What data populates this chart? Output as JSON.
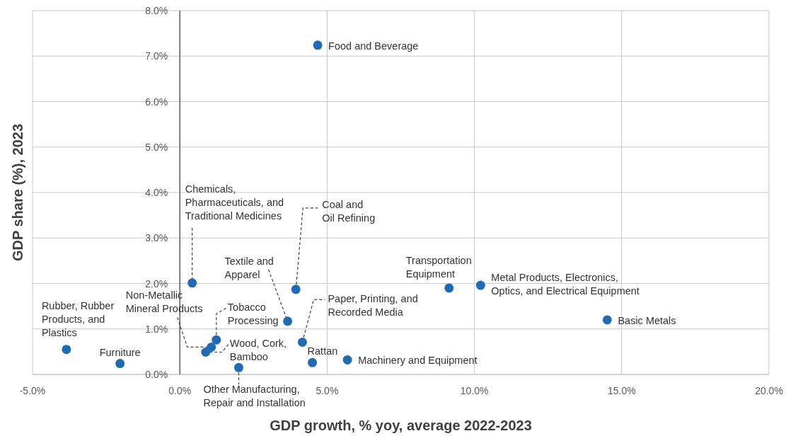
{
  "chart_data": {
    "type": "scatter",
    "xlabel": "GDP growth, % yoy, average 2022-2023",
    "ylabel": "GDP share (%), 2023",
    "x": [
      4.68,
      0.42,
      3.94,
      3.66,
      4.16,
      4.5,
      5.69,
      1.24,
      1.07,
      0.88,
      2.0,
      -3.85,
      -2.03,
      9.14,
      10.21,
      14.51
    ],
    "values": [
      7.24,
      2.01,
      1.87,
      1.17,
      0.71,
      0.26,
      0.32,
      0.76,
      0.6,
      0.49,
      0.15,
      0.55,
      0.24,
      1.9,
      1.96,
      1.2
    ],
    "color": "#1f6cb4",
    "marker": "circle",
    "grid": true,
    "xlim": [
      -5,
      20
    ],
    "xticks": [
      {
        "value": -5,
        "label": "-5.0%"
      },
      {
        "value": 0,
        "label": "0.0%"
      },
      {
        "value": 5,
        "label": "5.0%"
      },
      {
        "value": 10,
        "label": "10.0%"
      },
      {
        "value": 15,
        "label": "15.0%"
      },
      {
        "value": 20,
        "label": "20.0%"
      }
    ],
    "ylim": [
      0,
      8
    ],
    "yticks": [
      {
        "value": 0,
        "label": "0.0%"
      },
      {
        "value": 1,
        "label": "1.0%"
      },
      {
        "value": 2,
        "label": "2.0%"
      },
      {
        "value": 3,
        "label": "3.0%"
      },
      {
        "value": 4,
        "label": "4.0%"
      },
      {
        "value": 5,
        "label": "5.0%"
      },
      {
        "value": 6,
        "label": "6.0%"
      },
      {
        "value": 7,
        "label": "7.0%"
      },
      {
        "value": 8,
        "label": "8.0%"
      }
    ],
    "annotations": [
      {
        "text": "Food and Beverage",
        "x": 4.68,
        "y": 7.24
      },
      {
        "text": "Chemicals,\nPharmaceuticals, and\nTraditional Medicines",
        "x": 0.42,
        "y": 2.01
      },
      {
        "text": "Coal and\nOil Refining",
        "x": 3.94,
        "y": 1.87
      },
      {
        "text": "Textile and\nApparel",
        "x": 3.66,
        "y": 1.17
      },
      {
        "text": "Paper, Printing, and\nRecorded Media",
        "x": 4.16,
        "y": 0.71
      },
      {
        "text": "Rattan",
        "x": 4.5,
        "y": 0.26
      },
      {
        "text": "Machinery and Equipment",
        "x": 5.69,
        "y": 0.32
      },
      {
        "text": "Tobacco\nProcessing",
        "x": 1.24,
        "y": 0.76
      },
      {
        "text": "Non-Metallic\nMineral Products",
        "x": 1.07,
        "y": 0.6
      },
      {
        "text": "Wood, Cork,\nBamboo",
        "x": 0.88,
        "y": 0.49
      },
      {
        "text": "Other Manufacturing,\nRepair and Installation",
        "x": 2.0,
        "y": 0.15
      },
      {
        "text": "Rubber, Rubber\nProducts, and\nPlastics",
        "x": -3.85,
        "y": 0.55
      },
      {
        "text": "Furniture",
        "x": -2.03,
        "y": 0.24
      },
      {
        "text": "Transportation\nEquipment",
        "x": 9.14,
        "y": 1.9
      },
      {
        "text": "Metal Products, Electronics,\nOptics, and Electrical Equipment",
        "x": 10.21,
        "y": 1.96
      },
      {
        "text": "Basic Metals",
        "x": 14.51,
        "y": 1.2
      }
    ]
  }
}
